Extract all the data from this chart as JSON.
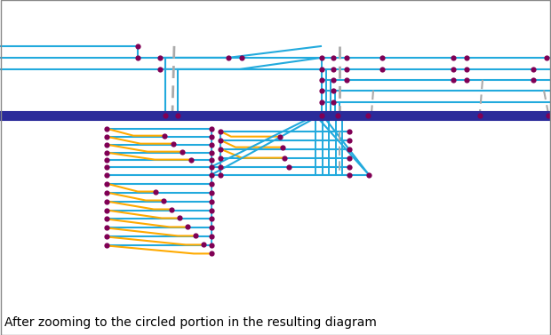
{
  "bg": "#ffffff",
  "main_col": "#2b2b9a",
  "cyan": "#22aadd",
  "orange": "#ffaa00",
  "dot": "#800055",
  "dash": "#aaaaaa",
  "caption": "After zooming to the circled portion in the resulting diagram",
  "cap_fs": 10,
  "fig_w": 6.2,
  "fig_h": 3.77,
  "dpi": 100
}
